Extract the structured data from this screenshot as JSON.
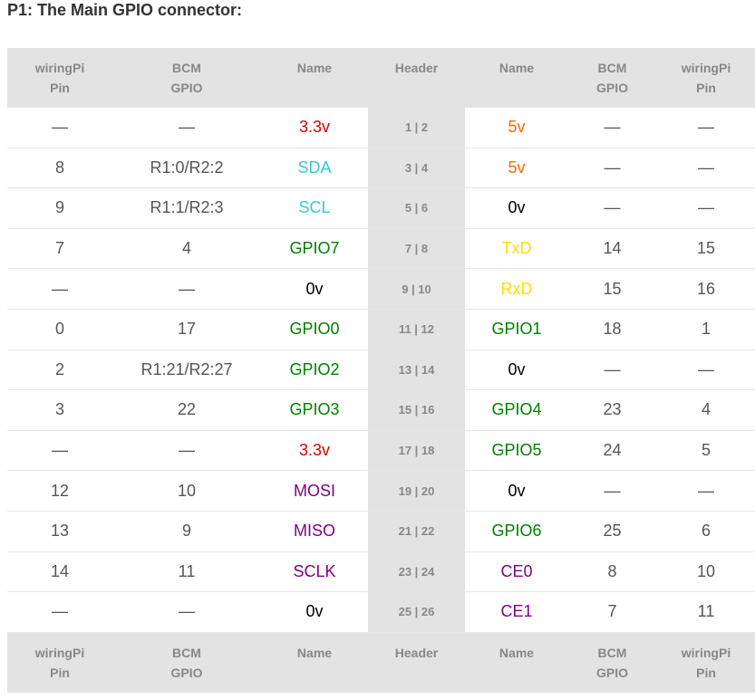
{
  "title": "P1: The Main GPIO connector:",
  "headers": [
    [
      "wiringPi",
      "Pin"
    ],
    [
      "BCM",
      "GPIO"
    ],
    [
      "Name",
      ""
    ],
    [
      "Header",
      ""
    ],
    [
      "Name",
      ""
    ],
    [
      "BCM",
      "GPIO"
    ],
    [
      "wiringPi",
      "Pin"
    ]
  ],
  "colors": {
    "red": "#e00000",
    "cyan": "#33cccc",
    "black": "#000000",
    "green": "#008000",
    "orange": "#ff6600",
    "yellow": "#ffdd00",
    "purple": "#800080"
  },
  "rows": [
    {
      "wpL": "—",
      "bcmL": "—",
      "nameL": "3.3v",
      "colL": "red",
      "hdr": "1 | 2",
      "nameR": "5v",
      "colR": "orange",
      "bcmR": "—",
      "wpR": "—"
    },
    {
      "wpL": "8",
      "bcmL": "R1:0/R2:2",
      "nameL": "SDA",
      "colL": "cyan",
      "hdr": "3 | 4",
      "nameR": "5v",
      "colR": "orange",
      "bcmR": "—",
      "wpR": "—"
    },
    {
      "wpL": "9",
      "bcmL": "R1:1/R2:3",
      "nameL": "SCL",
      "colL": "cyan",
      "hdr": "5 | 6",
      "nameR": "0v",
      "colR": "black",
      "bcmR": "—",
      "wpR": "—"
    },
    {
      "wpL": "7",
      "bcmL": "4",
      "nameL": "GPIO7",
      "colL": "green",
      "hdr": "7 | 8",
      "nameR": "TxD",
      "colR": "yellow",
      "bcmR": "14",
      "wpR": "15"
    },
    {
      "wpL": "—",
      "bcmL": "—",
      "nameL": "0v",
      "colL": "black",
      "hdr": "9 | 10",
      "nameR": "RxD",
      "colR": "yellow",
      "bcmR": "15",
      "wpR": "16"
    },
    {
      "wpL": "0",
      "bcmL": "17",
      "nameL": "GPIO0",
      "colL": "green",
      "hdr": "11 | 12",
      "nameR": "GPIO1",
      "colR": "green",
      "bcmR": "18",
      "wpR": "1"
    },
    {
      "wpL": "2",
      "bcmL": "R1:21/R2:27",
      "nameL": "GPIO2",
      "colL": "green",
      "hdr": "13 | 14",
      "nameR": "0v",
      "colR": "black",
      "bcmR": "—",
      "wpR": "—"
    },
    {
      "wpL": "3",
      "bcmL": "22",
      "nameL": "GPIO3",
      "colL": "green",
      "hdr": "15 | 16",
      "nameR": "GPIO4",
      "colR": "green",
      "bcmR": "23",
      "wpR": "4"
    },
    {
      "wpL": "—",
      "bcmL": "—",
      "nameL": "3.3v",
      "colL": "red",
      "hdr": "17 | 18",
      "nameR": "GPIO5",
      "colR": "green",
      "bcmR": "24",
      "wpR": "5"
    },
    {
      "wpL": "12",
      "bcmL": "10",
      "nameL": "MOSI",
      "colL": "purple",
      "hdr": "19 | 20",
      "nameR": "0v",
      "colR": "black",
      "bcmR": "—",
      "wpR": "—"
    },
    {
      "wpL": "13",
      "bcmL": "9",
      "nameL": "MISO",
      "colL": "purple",
      "hdr": "21 | 22",
      "nameR": "GPIO6",
      "colR": "green",
      "bcmR": "25",
      "wpR": "6"
    },
    {
      "wpL": "14",
      "bcmL": "11",
      "nameL": "SCLK",
      "colL": "purple",
      "hdr": "23 | 24",
      "nameR": "CE0",
      "colR": "purple",
      "bcmR": "8",
      "wpR": "10"
    },
    {
      "wpL": "—",
      "bcmL": "—",
      "nameL": "0v",
      "colL": "black",
      "hdr": "25 | 26",
      "nameR": "CE1",
      "colR": "purple",
      "bcmR": "7",
      "wpR": "11"
    }
  ]
}
